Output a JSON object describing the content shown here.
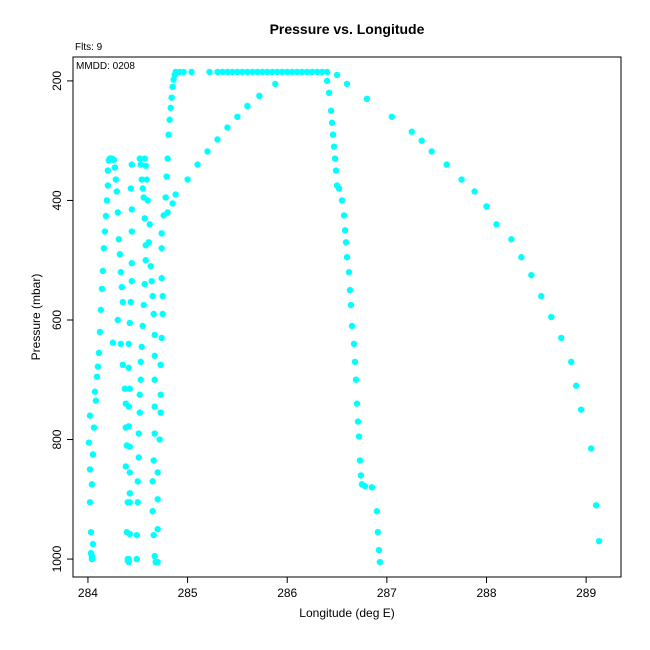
{
  "chart_data": {
    "type": "scatter",
    "title": "Pressure vs. Longitude",
    "xlabel": "Longitude (deg E)",
    "ylabel": "Pressure (mbar)",
    "subtitle": "Flts: 9",
    "annotation": "MMDD: 0208",
    "xlim": [
      283.85,
      289.35
    ],
    "ylim": [
      1030,
      160
    ],
    "y_reversed": true,
    "grid": false,
    "point_color": "#00ffff",
    "x_ticks": [
      284,
      285,
      286,
      287,
      288,
      289
    ],
    "x_tick_labels": [
      "284",
      "285",
      "286",
      "287",
      "288",
      "289"
    ],
    "y_ticks": [
      200,
      400,
      600,
      800,
      1000
    ],
    "y_tick_labels": [
      "200",
      "400",
      "600",
      "800",
      "1000"
    ],
    "series": [
      {
        "points": [
          [
            284.04,
            1000
          ],
          [
            284.04,
            995
          ],
          [
            284.03,
            990
          ],
          [
            284.05,
            975
          ],
          [
            284.03,
            955
          ],
          [
            284.02,
            905
          ],
          [
            284.04,
            875
          ],
          [
            284.02,
            850
          ],
          [
            284.05,
            825
          ],
          [
            284.01,
            805
          ],
          [
            284.06,
            780
          ],
          [
            284.02,
            760
          ],
          [
            284.08,
            735
          ],
          [
            284.07,
            720
          ],
          [
            284.09,
            695
          ],
          [
            284.1,
            678
          ],
          [
            284.11,
            655
          ],
          [
            284.12,
            620
          ],
          [
            284.13,
            583
          ],
          [
            284.14,
            548
          ],
          [
            284.15,
            518
          ],
          [
            284.16,
            480
          ],
          [
            284.17,
            452
          ],
          [
            284.18,
            426
          ],
          [
            284.19,
            400
          ],
          [
            284.2,
            375
          ],
          [
            284.2,
            350
          ],
          [
            284.21,
            333
          ],
          [
            284.22,
            330
          ]
        ]
      },
      {
        "points": [
          [
            284.24,
            330
          ],
          [
            284.26,
            332
          ],
          [
            284.27,
            345
          ],
          [
            284.28,
            365
          ],
          [
            284.29,
            385
          ],
          [
            284.3,
            420
          ],
          [
            284.31,
            465
          ],
          [
            284.32,
            490
          ],
          [
            284.33,
            520
          ],
          [
            284.34,
            545
          ],
          [
            284.35,
            570
          ],
          [
            284.3,
            600
          ],
          [
            284.25,
            638
          ],
          [
            284.33,
            640
          ],
          [
            284.35,
            675
          ],
          [
            284.37,
            715
          ],
          [
            284.38,
            740
          ],
          [
            284.38,
            780
          ],
          [
            284.39,
            810
          ],
          [
            284.38,
            845
          ],
          [
            284.4,
            905
          ],
          [
            284.39,
            955
          ],
          [
            284.4,
            1000
          ],
          [
            284.4,
            1003
          ]
        ]
      },
      {
        "points": [
          [
            284.44,
            340
          ],
          [
            284.43,
            380
          ],
          [
            284.44,
            415
          ],
          [
            284.44,
            452
          ],
          [
            284.44,
            505
          ],
          [
            284.44,
            535
          ],
          [
            284.43,
            570
          ],
          [
            284.42,
            605
          ],
          [
            284.41,
            640
          ],
          [
            284.41,
            680
          ],
          [
            284.42,
            715
          ],
          [
            284.41,
            745
          ],
          [
            284.41,
            778
          ],
          [
            284.42,
            812
          ],
          [
            284.42,
            855
          ],
          [
            284.42,
            890
          ],
          [
            284.42,
            905
          ],
          [
            284.42,
            958
          ],
          [
            284.41,
            1000
          ],
          [
            284.41,
            1005
          ]
        ]
      },
      {
        "points": [
          [
            284.52,
            330
          ],
          [
            284.53,
            340
          ],
          [
            284.54,
            365
          ],
          [
            284.55,
            380
          ],
          [
            284.56,
            395
          ],
          [
            284.57,
            430
          ],
          [
            284.58,
            475
          ],
          [
            284.58,
            500
          ],
          [
            284.57,
            540
          ],
          [
            284.56,
            575
          ],
          [
            284.55,
            610
          ],
          [
            284.54,
            645
          ],
          [
            284.53,
            670
          ],
          [
            284.53,
            700
          ],
          [
            284.52,
            725
          ],
          [
            284.52,
            755
          ],
          [
            284.51,
            790
          ],
          [
            284.51,
            830
          ],
          [
            284.5,
            870
          ],
          [
            284.5,
            905
          ],
          [
            284.49,
            960
          ],
          [
            284.49,
            1000
          ]
        ]
      },
      {
        "points": [
          [
            284.57,
            330
          ],
          [
            284.58,
            342
          ],
          [
            284.59,
            365
          ],
          [
            284.6,
            400
          ],
          [
            284.62,
            440
          ],
          [
            284.61,
            470
          ],
          [
            284.63,
            510
          ],
          [
            284.64,
            535
          ],
          [
            284.65,
            560
          ],
          [
            284.66,
            590
          ],
          [
            284.67,
            625
          ],
          [
            284.67,
            660
          ],
          [
            284.67,
            700
          ],
          [
            284.67,
            745
          ],
          [
            284.67,
            790
          ],
          [
            284.66,
            835
          ],
          [
            284.65,
            870
          ],
          [
            284.65,
            920
          ],
          [
            284.66,
            960
          ],
          [
            284.67,
            995
          ],
          [
            284.68,
            1005
          ]
        ]
      },
      {
        "points": [
          [
            284.7,
            1005
          ],
          [
            284.7,
            950
          ],
          [
            284.7,
            900
          ],
          [
            284.7,
            855
          ],
          [
            284.72,
            800
          ],
          [
            284.73,
            755
          ],
          [
            284.73,
            725
          ],
          [
            284.73,
            675
          ],
          [
            284.74,
            630
          ],
          [
            284.75,
            590
          ],
          [
            284.75,
            560
          ],
          [
            284.74,
            530
          ],
          [
            284.74,
            480
          ],
          [
            284.74,
            455
          ],
          [
            284.76,
            425
          ],
          [
            284.78,
            395
          ],
          [
            284.79,
            360
          ],
          [
            284.8,
            330
          ],
          [
            284.81,
            290
          ],
          [
            284.82,
            265
          ],
          [
            284.83,
            245
          ],
          [
            284.84,
            228
          ],
          [
            284.85,
            210
          ],
          [
            284.86,
            198
          ],
          [
            284.87,
            190
          ],
          [
            284.88,
            185
          ],
          [
            284.92,
            185
          ],
          [
            284.96,
            185
          ],
          [
            285.04,
            185
          ],
          [
            285.22,
            185
          ],
          [
            285.3,
            185
          ],
          [
            285.35,
            185
          ],
          [
            285.4,
            185
          ],
          [
            285.45,
            185
          ],
          [
            285.5,
            185
          ],
          [
            285.55,
            185
          ],
          [
            285.6,
            185
          ],
          [
            285.65,
            185
          ],
          [
            285.7,
            185
          ],
          [
            285.75,
            185
          ],
          [
            285.8,
            185
          ],
          [
            285.85,
            185
          ],
          [
            285.9,
            185
          ],
          [
            285.95,
            185
          ],
          [
            286.0,
            185
          ],
          [
            286.05,
            185
          ],
          [
            286.1,
            185
          ],
          [
            286.15,
            185
          ],
          [
            286.2,
            185
          ],
          [
            286.25,
            185
          ],
          [
            286.3,
            185
          ],
          [
            286.35,
            185
          ],
          [
            286.4,
            185
          ]
        ]
      },
      {
        "points": [
          [
            286.4,
            200
          ],
          [
            286.42,
            220
          ],
          [
            286.44,
            250
          ],
          [
            286.45,
            270
          ],
          [
            286.46,
            290
          ],
          [
            286.47,
            310
          ],
          [
            286.48,
            330
          ],
          [
            286.49,
            350
          ],
          [
            286.5,
            375
          ],
          [
            286.52,
            380
          ],
          [
            286.55,
            400
          ],
          [
            286.57,
            425
          ],
          [
            286.58,
            450
          ],
          [
            286.59,
            470
          ],
          [
            286.6,
            495
          ],
          [
            286.62,
            520
          ],
          [
            286.63,
            550
          ],
          [
            286.64,
            575
          ],
          [
            286.65,
            610
          ],
          [
            286.67,
            640
          ],
          [
            286.68,
            670
          ],
          [
            286.69,
            700
          ],
          [
            286.7,
            740
          ],
          [
            286.71,
            770
          ],
          [
            286.72,
            795
          ],
          [
            286.73,
            835
          ],
          [
            286.74,
            860
          ],
          [
            286.75,
            875
          ],
          [
            286.78,
            878
          ],
          [
            286.85,
            880
          ],
          [
            286.9,
            920
          ],
          [
            286.91,
            955
          ],
          [
            286.92,
            985
          ],
          [
            286.93,
            1005
          ]
        ]
      },
      {
        "points": [
          [
            284.8,
            420
          ],
          [
            284.85,
            405
          ],
          [
            284.88,
            390
          ],
          [
            285.0,
            365
          ],
          [
            285.1,
            340
          ],
          [
            285.2,
            318
          ],
          [
            285.3,
            298
          ],
          [
            285.4,
            278
          ],
          [
            285.5,
            260
          ],
          [
            285.6,
            242
          ],
          [
            285.72,
            225
          ],
          [
            285.88,
            205
          ]
        ]
      },
      {
        "points": [
          [
            286.5,
            190
          ],
          [
            286.6,
            205
          ],
          [
            286.8,
            230
          ],
          [
            287.05,
            260
          ],
          [
            287.25,
            285
          ],
          [
            287.35,
            300
          ],
          [
            287.45,
            318
          ],
          [
            287.6,
            340
          ],
          [
            287.75,
            365
          ],
          [
            287.88,
            385
          ],
          [
            288.0,
            410
          ],
          [
            288.1,
            440
          ],
          [
            288.25,
            465
          ],
          [
            288.35,
            495
          ],
          [
            288.45,
            525
          ],
          [
            288.55,
            560
          ],
          [
            288.65,
            595
          ],
          [
            288.75,
            630
          ],
          [
            288.85,
            670
          ],
          [
            288.9,
            710
          ],
          [
            288.95,
            750
          ],
          [
            289.05,
            815
          ],
          [
            289.1,
            910
          ],
          [
            289.13,
            970
          ]
        ]
      }
    ]
  }
}
